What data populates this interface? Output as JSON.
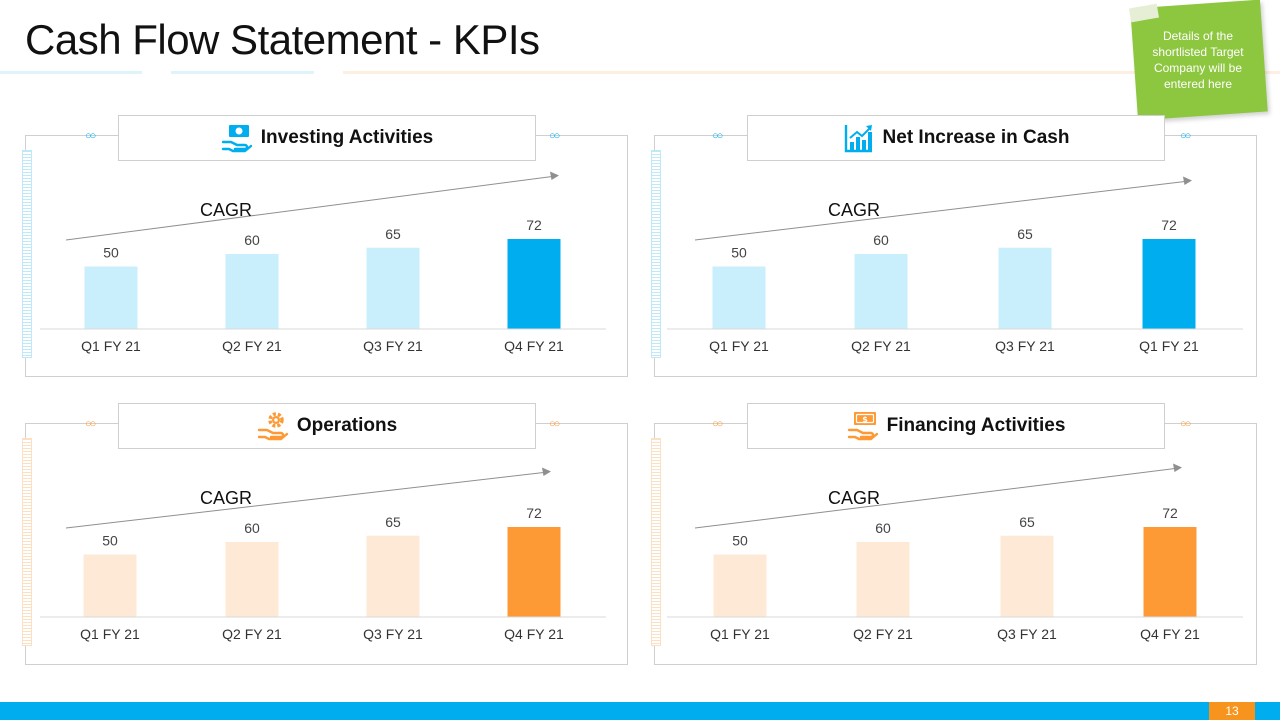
{
  "slide": {
    "title": "Cash Flow Statement - KPIs",
    "note": "Details of the shortlisted Target Company will be entered here",
    "page_number": "13"
  },
  "colors": {
    "blue_light": "#c9eefc",
    "blue_dark": "#00aeef",
    "orange_light": "#fde9d5",
    "orange_dark": "#fd9a35",
    "note_green": "#8dc63f"
  },
  "panels": [
    {
      "title": "Investing Activities",
      "icon": "money-hand-icon",
      "theme": "blue",
      "cagr_label": "CAGR"
    },
    {
      "title": "Net Increase in Cash",
      "icon": "bar-growth-icon",
      "theme": "blue",
      "cagr_label": "CAGR"
    },
    {
      "title": "Operations",
      "icon": "gear-hand-icon",
      "theme": "orange",
      "cagr_label": "CAGR"
    },
    {
      "title": "Financing Activities",
      "icon": "cash-hand-icon",
      "theme": "orange",
      "cagr_label": "CAGR"
    }
  ],
  "chart_data": [
    {
      "type": "bar",
      "title": "Investing Activities",
      "categories": [
        "Q1 FY 21",
        "Q2 FY 21",
        "Q3 FY 21",
        "Q4 FY 21"
      ],
      "values": [
        50,
        60,
        65,
        72
      ],
      "ylim": [
        0,
        100
      ],
      "grid": false,
      "annotations": [
        "CAGR"
      ]
    },
    {
      "type": "bar",
      "title": "Net Increase in Cash",
      "categories": [
        "Q1 FY 21",
        "Q2 FY 21",
        "Q3 FY 21",
        "Q1 FY 21"
      ],
      "values": [
        50,
        60,
        65,
        72
      ],
      "ylim": [
        0,
        100
      ],
      "grid": false,
      "annotations": [
        "CAGR"
      ]
    },
    {
      "type": "bar",
      "title": "Operations",
      "categories": [
        "Q1 FY 21",
        "Q2 FY 21",
        "Q3 FY 21",
        "Q4 FY 21"
      ],
      "values": [
        50,
        60,
        65,
        72
      ],
      "ylim": [
        0,
        100
      ],
      "grid": false,
      "annotations": [
        "CAGR"
      ]
    },
    {
      "type": "bar",
      "title": "Financing Activities",
      "categories": [
        "Q1 FY 21",
        "Q2 FY 21",
        "Q3 FY 21",
        "Q4 FY 21"
      ],
      "values": [
        50,
        60,
        65,
        72
      ],
      "ylim": [
        0,
        100
      ],
      "grid": false,
      "annotations": [
        "CAGR"
      ]
    }
  ]
}
